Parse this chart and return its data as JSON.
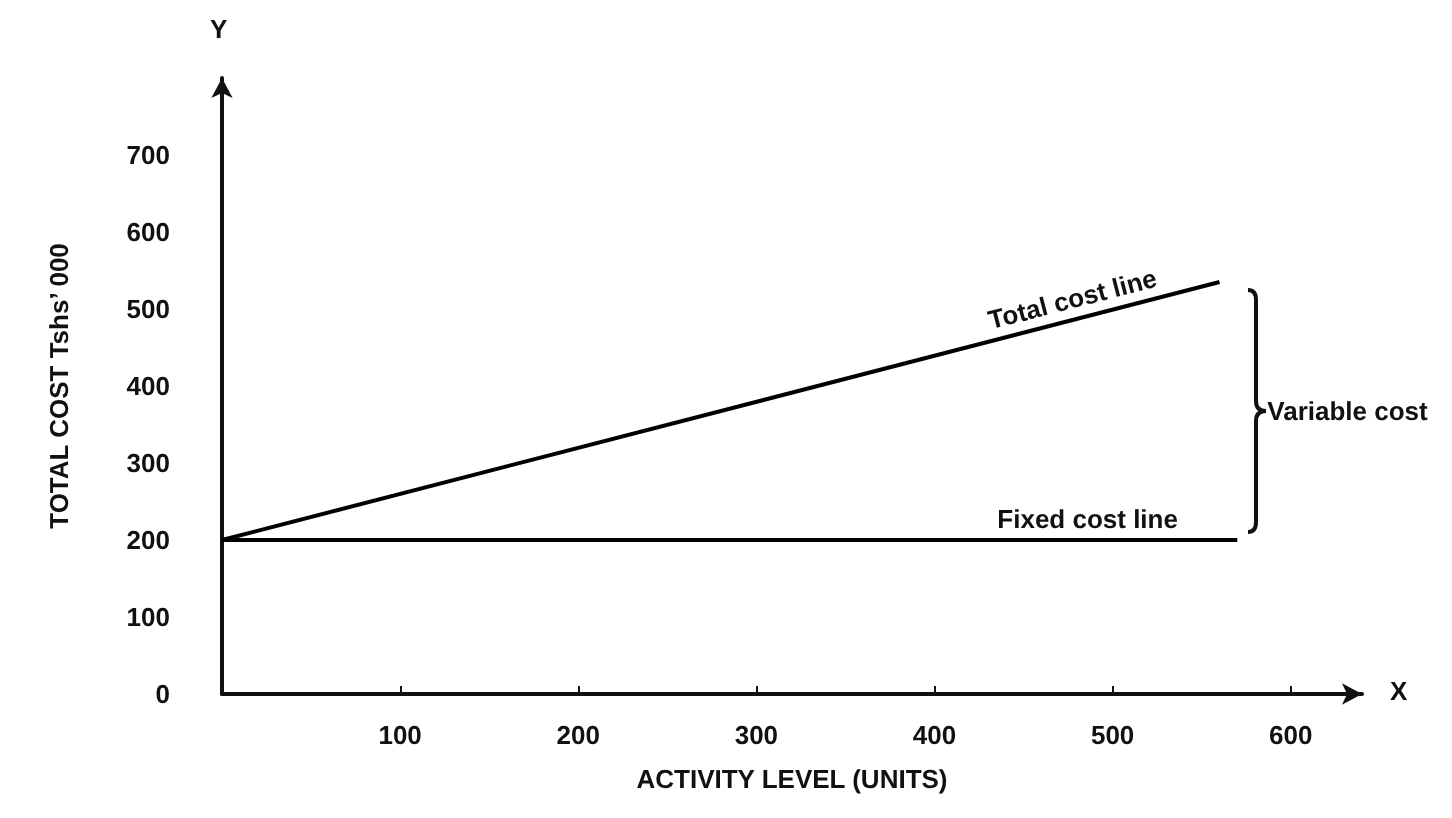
{
  "chart_data": {
    "type": "line",
    "xlabel": "ACTIVITY LEVEL (UNITS)",
    "ylabel": "TOTAL COST Tshs’ 000",
    "xlim": [
      0,
      640
    ],
    "ylim": [
      0,
      800
    ],
    "xticks": [
      {
        "value": 0,
        "label": null
      },
      100,
      200,
      300,
      400,
      500,
      600
    ],
    "yticks": [
      0,
      100,
      200,
      300,
      400,
      500,
      600,
      700
    ],
    "grid": false,
    "legend": false,
    "marker": "none",
    "line_style": "solid",
    "series": [
      {
        "name": "Total cost line",
        "color": "#000000",
        "x": [
          0,
          560
        ],
        "values": [
          200,
          535
        ]
      },
      {
        "name": "Fixed cost line",
        "color": "#000000",
        "x": [
          0,
          570
        ],
        "values": [
          200,
          200
        ]
      }
    ],
    "annotations": [
      "X",
      "Y",
      "Variable cost"
    ]
  }
}
